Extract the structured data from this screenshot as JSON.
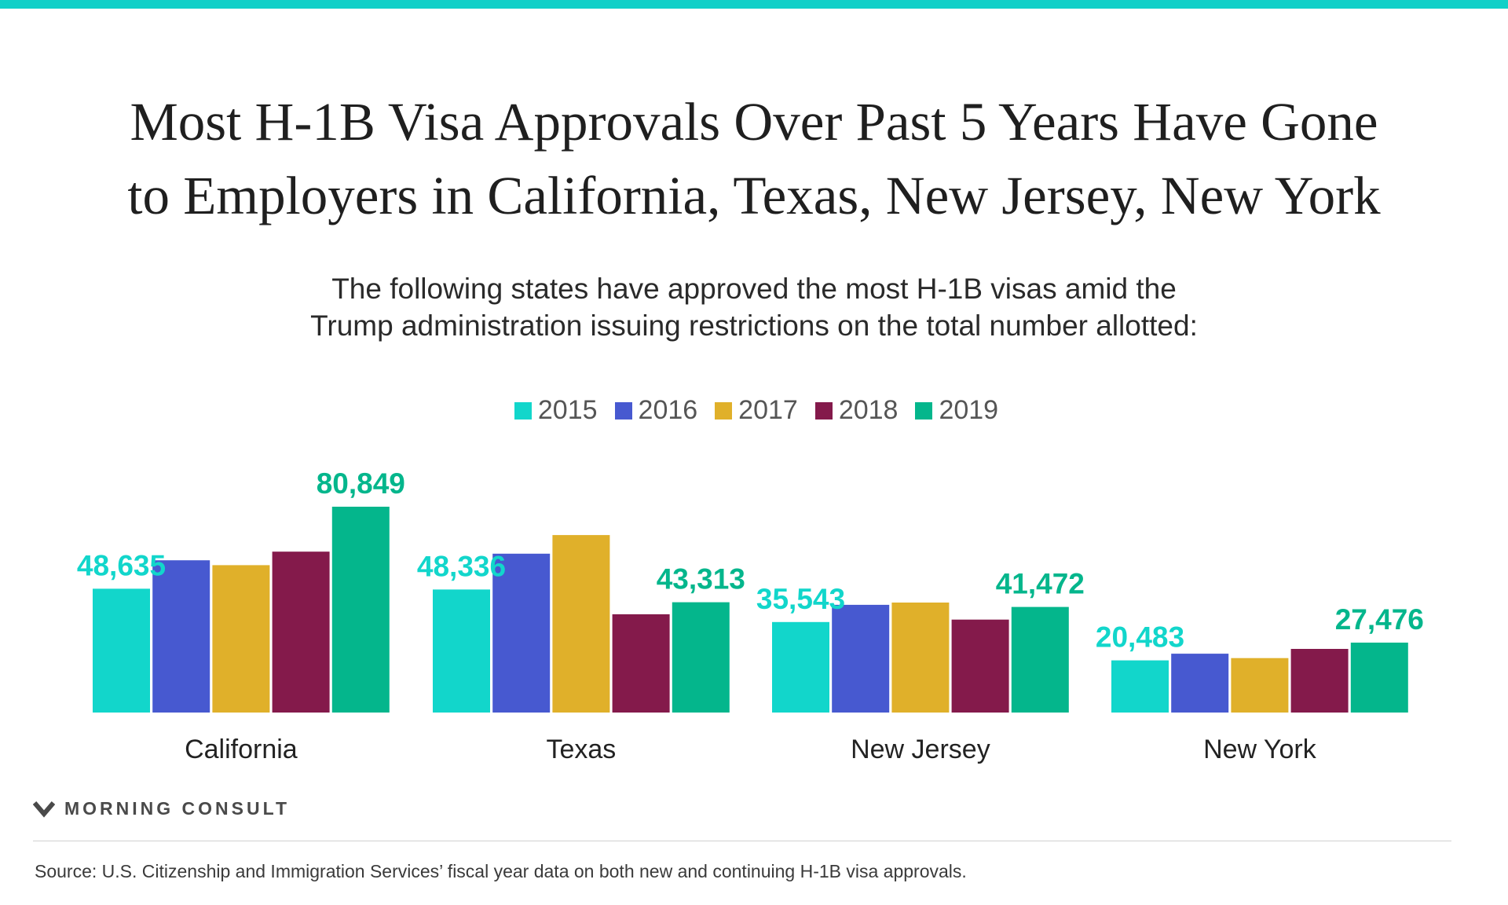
{
  "title": {
    "line1": "Most H-1B Visa Approvals Over Past 5 Years Have Gone",
    "line2": "to Employers in California, Texas, New Jersey, New York"
  },
  "subtitle": {
    "line1": "The following states have approved the most H-1B visas amid the",
    "line2": "Trump administration issuing restrictions on the total number allotted:"
  },
  "colors": {
    "top_bar": "#11d0c8",
    "2015": "#12d6cb",
    "2016": "#4759d0",
    "2017": "#e0b02a",
    "2018": "#841a4b",
    "2019": "#04b68c"
  },
  "brand": {
    "name": "MORNING CONSULT",
    "icon": "morning-consult-logo-icon"
  },
  "source": "Source: U.S. Citizenship and Immigration Services’ fiscal year data on both new and continuing H-1B visa approvals.",
  "chart_data": {
    "type": "bar",
    "categories": [
      "California",
      "Texas",
      "New Jersey",
      "New York"
    ],
    "series": [
      {
        "name": "2015",
        "values": [
          48635,
          48336,
          35543,
          20483
        ]
      },
      {
        "name": "2016",
        "values": [
          59800,
          62400,
          42300,
          23100
        ]
      },
      {
        "name": "2017",
        "values": [
          57900,
          69700,
          43200,
          21400
        ]
      },
      {
        "name": "2018",
        "values": [
          63200,
          38600,
          36500,
          25000
        ]
      },
      {
        "name": "2019",
        "values": [
          80849,
          43313,
          41472,
          27476
        ]
      }
    ],
    "data_labels": [
      {
        "category": "California",
        "series": "2015",
        "text": "48,635"
      },
      {
        "category": "California",
        "series": "2019",
        "text": "80,849"
      },
      {
        "category": "Texas",
        "series": "2015",
        "text": "48,336"
      },
      {
        "category": "Texas",
        "series": "2019",
        "text": "43,313"
      },
      {
        "category": "New Jersey",
        "series": "2015",
        "text": "35,543"
      },
      {
        "category": "New Jersey",
        "series": "2019",
        "text": "41,472"
      },
      {
        "category": "New York",
        "series": "2015",
        "text": "20,483"
      },
      {
        "category": "New York",
        "series": "2019",
        "text": "27,476"
      }
    ],
    "ylim": [
      0,
      100000
    ],
    "grid": false,
    "legend_position": "top-center"
  }
}
